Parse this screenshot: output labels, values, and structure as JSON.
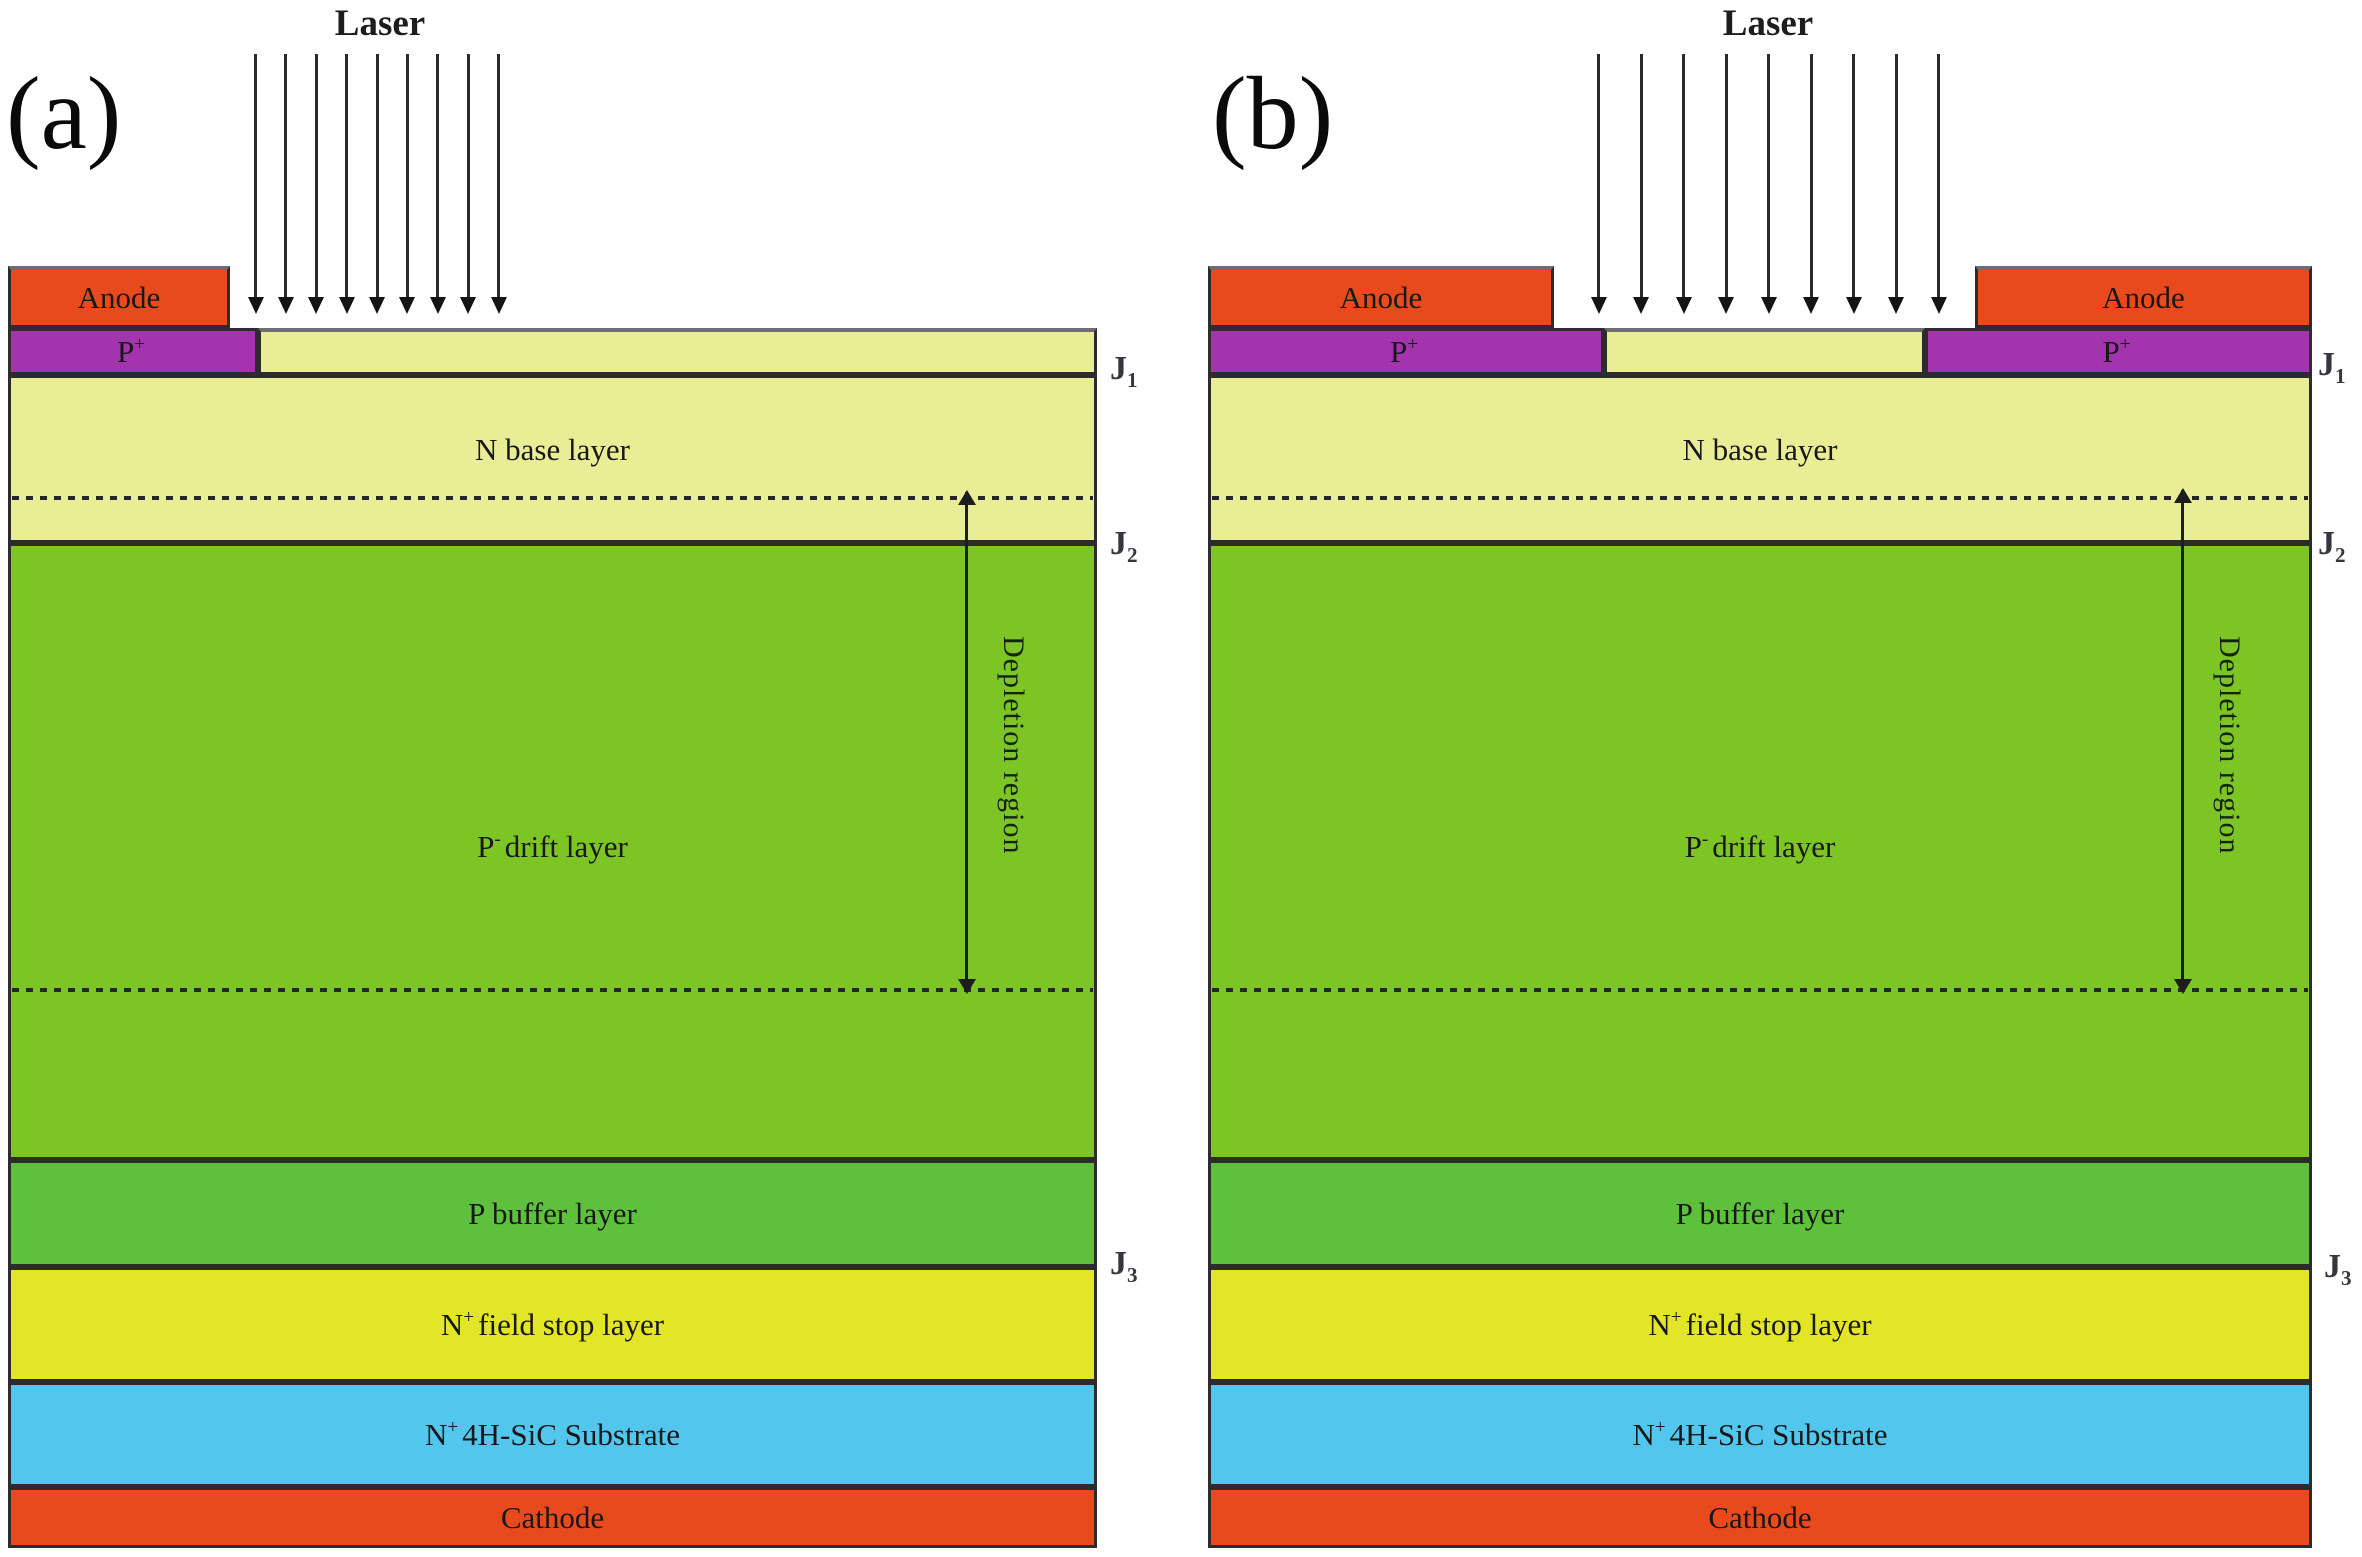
{
  "panels": [
    {
      "label": "(a)"
    },
    {
      "label": "(b)"
    }
  ],
  "laser": {
    "label": "Laser",
    "arrow_count": 9
  },
  "layer_labels": {
    "anode": "Anode",
    "p_plus": {
      "base": "P",
      "sup": "+"
    },
    "n_base": "N base layer",
    "drift": {
      "base": "P",
      "sup": "-",
      "rest": "drift layer"
    },
    "depletion": "Depletion region",
    "buffer": "P buffer layer",
    "field_stop": {
      "base": "N",
      "sup": "+",
      "rest": "field stop layer"
    },
    "substrate": {
      "base": "N",
      "sup": "+",
      "rest": "4H-SiC Substrate"
    },
    "cathode": "Cathode"
  },
  "junction_labels": {
    "j1": {
      "base": "J",
      "sub": "1"
    },
    "j2": {
      "base": "J",
      "sub": "2"
    },
    "j3": {
      "base": "J",
      "sub": "3"
    }
  },
  "colors": {
    "anode": "#e8491d",
    "p_plus": "#a434ae",
    "n_base": "#e9ee96",
    "drift": "#7cc524",
    "buffer": "#5ec03c",
    "field_stop": "#e3e626",
    "substrate": "#52c6ec",
    "cathode": "#e8491d"
  }
}
